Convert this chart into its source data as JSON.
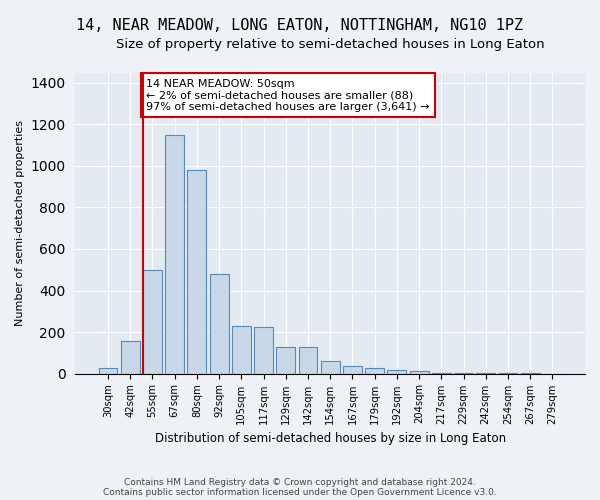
{
  "title": "14, NEAR MEADOW, LONG EATON, NOTTINGHAM, NG10 1PZ",
  "subtitle": "Size of property relative to semi-detached houses in Long Eaton",
  "xlabel": "Distribution of semi-detached houses by size in Long Eaton",
  "ylabel": "Number of semi-detached properties",
  "bar_labels": [
    "30sqm",
    "42sqm",
    "55sqm",
    "67sqm",
    "80sqm",
    "92sqm",
    "105sqm",
    "117sqm",
    "129sqm",
    "142sqm",
    "154sqm",
    "167sqm",
    "179sqm",
    "192sqm",
    "204sqm",
    "217sqm",
    "229sqm",
    "242sqm",
    "254sqm",
    "267sqm",
    "279sqm"
  ],
  "bar_values": [
    25,
    155,
    500,
    1150,
    980,
    480,
    230,
    225,
    130,
    130,
    60,
    35,
    25,
    15,
    10,
    5,
    3,
    2,
    1,
    1,
    0
  ],
  "bar_color": "#c8d8e8",
  "bar_edge_color": "#5588bb",
  "annotation_text": "14 NEAR MEADOW: 50sqm\n← 2% of semi-detached houses are smaller (88)\n97% of semi-detached houses are larger (3,641) →",
  "redline_x": 2.0,
  "footer": "Contains HM Land Registry data © Crown copyright and database right 2024.\nContains public sector information licensed under the Open Government Licence v3.0.",
  "bg_color": "#eef2f7",
  "plot_bg_color": "#e4eaf2",
  "ylim": [
    0,
    1450
  ],
  "title_fontsize": 11,
  "subtitle_fontsize": 9.5
}
